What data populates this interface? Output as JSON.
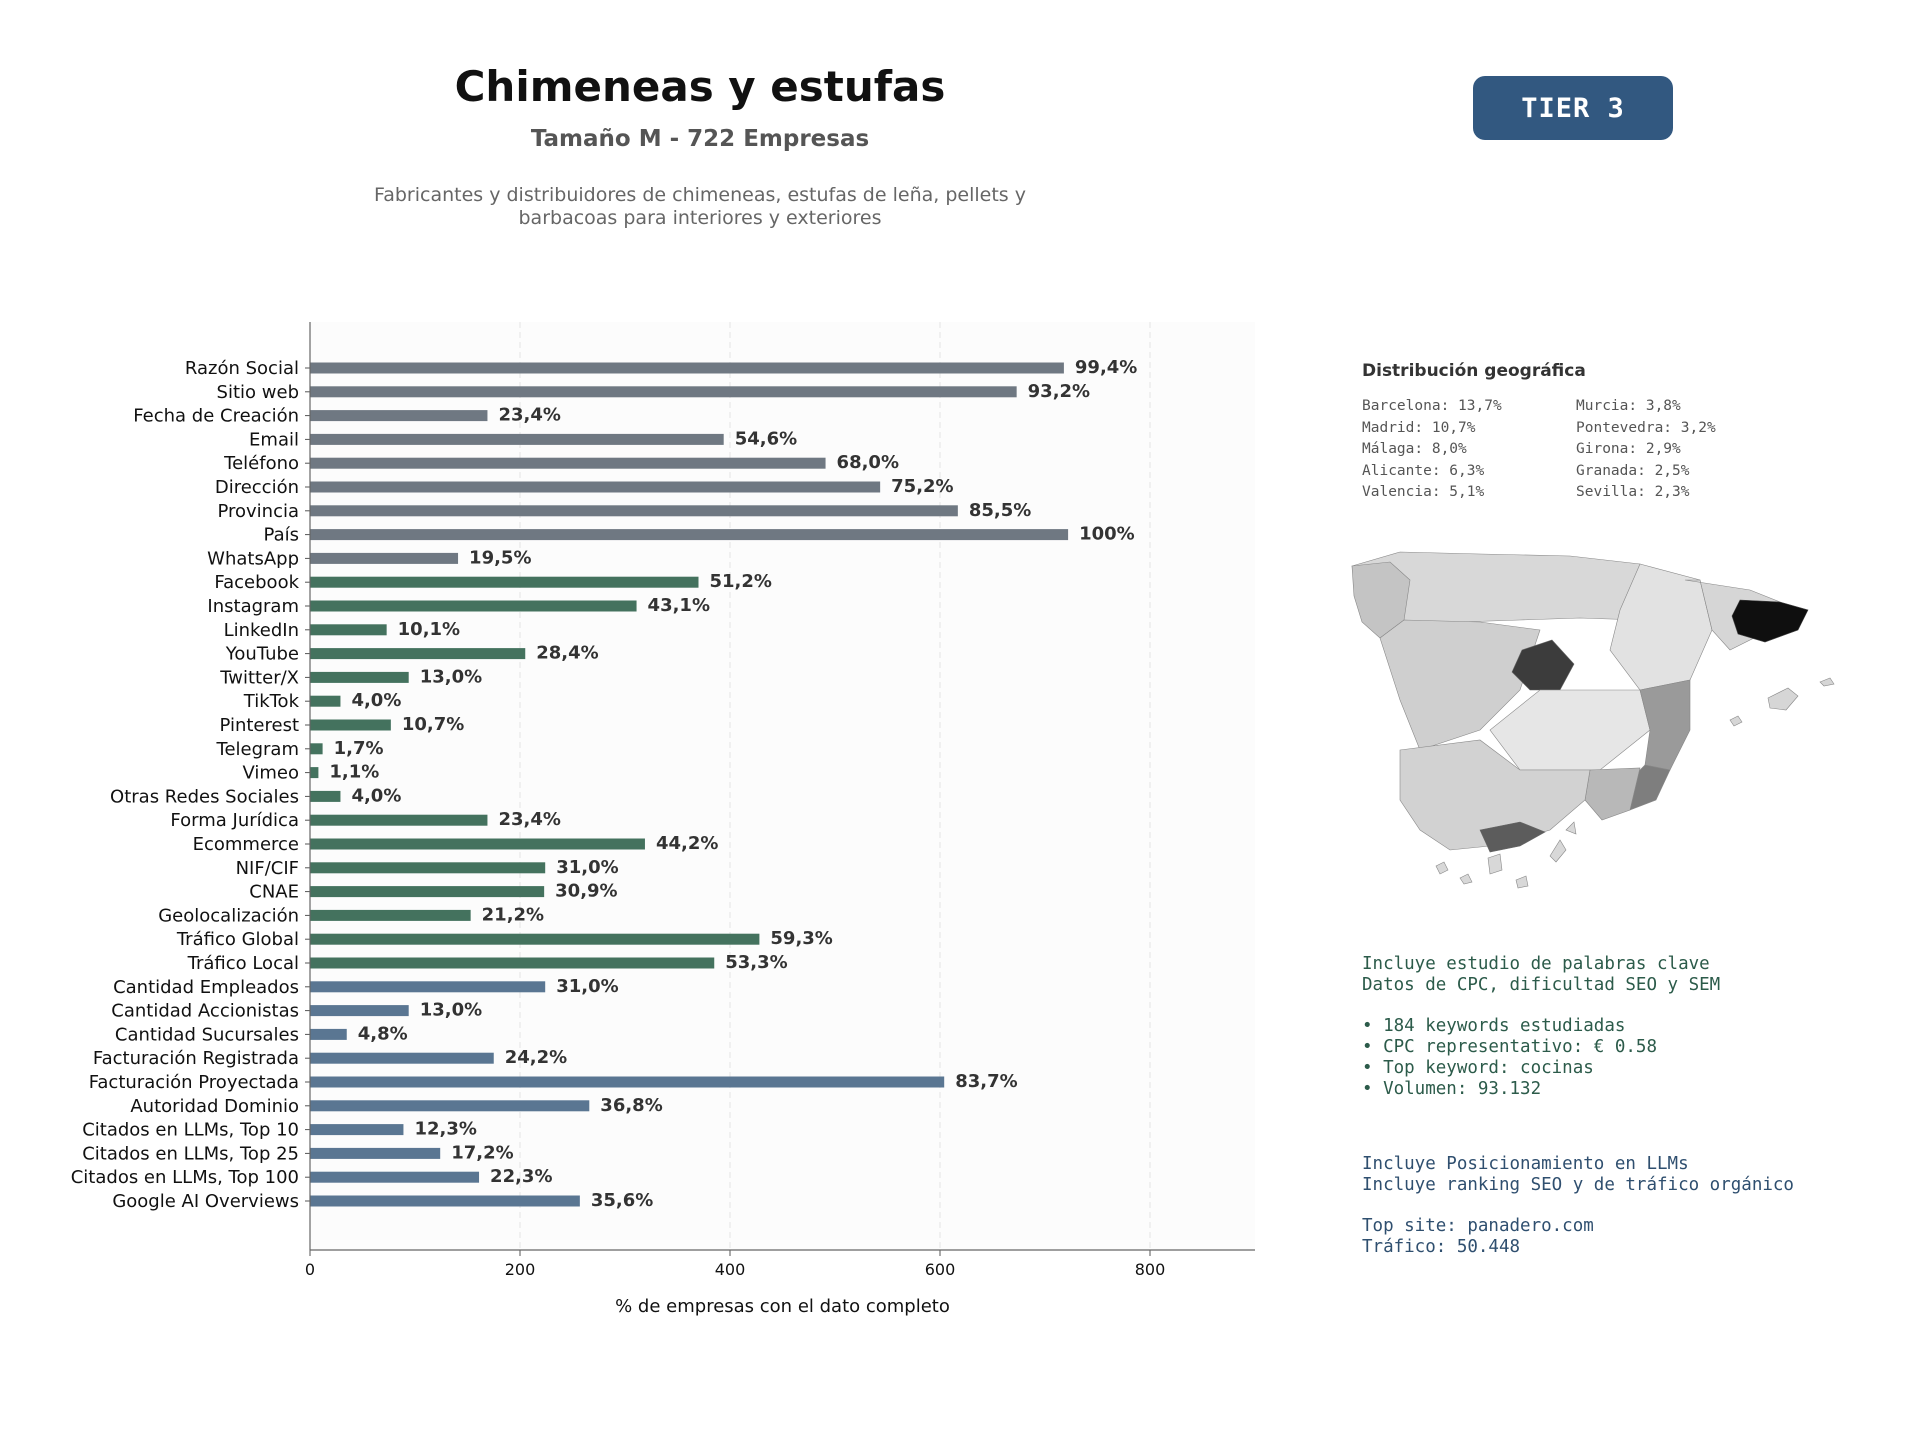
{
  "header": {
    "title": "Chimeneas y estufas",
    "subtitle": "Tamaño M - 722 Empresas",
    "description": "Fabricantes y distribuidores de chimeneas, estufas de leña, pellets y barbacoas para interiores y exteriores",
    "tier": "TIER 3"
  },
  "colors": {
    "gray": "#6f7882",
    "green": "#44725e",
    "blue": "#5a7692",
    "tier_bg": "#325880"
  },
  "chart_data": {
    "type": "bar",
    "orientation": "horizontal",
    "xlabel": "% de empresas con el dato completo",
    "xlim": [
      0,
      900
    ],
    "xticks": [
      0,
      200,
      400,
      600,
      800
    ],
    "grid": true,
    "categories": [
      "Razón Social",
      "Sitio web",
      "Fecha de Creación",
      "Email",
      "Teléfono",
      "Dirección",
      "Provincia",
      "País",
      "WhatsApp",
      "Facebook",
      "Instagram",
      "LinkedIn",
      "YouTube",
      "Twitter/X",
      "TikTok",
      "Pinterest",
      "Telegram",
      "Vimeo",
      "Otras Redes Sociales",
      "Forma Jurídica",
      "Ecommerce",
      "NIF/CIF",
      "CNAE",
      "Geolocalización",
      "Tráfico Global",
      "Tráfico Local",
      "Cantidad Empleados",
      "Cantidad Accionistas",
      "Cantidad Sucursales",
      "Facturación Registrada",
      "Facturación Proyectada",
      "Autoridad Dominio",
      "Citados en LLMs, Top 10",
      "Citados en LLMs, Top 25",
      "Citados en LLMs, Top 100",
      "Google AI Overviews"
    ],
    "values": [
      718,
      673,
      169,
      394,
      491,
      543,
      617,
      722,
      141,
      370,
      311,
      73,
      205,
      94,
      29,
      77,
      12,
      8,
      29,
      169,
      319,
      224,
      223,
      153,
      428,
      385,
      224,
      94,
      35,
      175,
      604,
      266,
      89,
      124,
      161,
      257
    ],
    "labels": [
      "99,4%",
      "93,2%",
      "23,4%",
      "54,6%",
      "68,0%",
      "75,2%",
      "85,5%",
      "100%",
      "19,5%",
      "51,2%",
      "43,1%",
      "10,1%",
      "28,4%",
      "13,0%",
      "4,0%",
      "10,7%",
      "1,7%",
      "1,1%",
      "4,0%",
      "23,4%",
      "44,2%",
      "31,0%",
      "30,9%",
      "21,2%",
      "59,3%",
      "53,3%",
      "31,0%",
      "13,0%",
      "4,8%",
      "24,2%",
      "83,7%",
      "36,8%",
      "12,3%",
      "17,2%",
      "22,3%",
      "35,6%"
    ],
    "groups": [
      "gray",
      "gray",
      "gray",
      "gray",
      "gray",
      "gray",
      "gray",
      "gray",
      "gray",
      "green",
      "green",
      "green",
      "green",
      "green",
      "green",
      "green",
      "green",
      "green",
      "green",
      "green",
      "green",
      "green",
      "green",
      "green",
      "green",
      "green",
      "blue",
      "blue",
      "blue",
      "blue",
      "blue",
      "blue",
      "blue",
      "blue",
      "blue",
      "blue"
    ]
  },
  "geo": {
    "title": "Distribución geográfica",
    "items": [
      "Barcelona: 13,7%",
      "Murcia: 3,8%",
      "Madrid: 10,7%",
      "Pontevedra: 3,2%",
      "Málaga: 8,0%",
      "Girona: 2,9%",
      "Alicante: 6,3%",
      "Granada: 2,5%",
      "Valencia: 5,1%",
      "Sevilla: 2,3%"
    ]
  },
  "keywords": {
    "line1": "Incluye estudio de palabras clave",
    "line2": "Datos de CPC, dificultad SEO y SEM",
    "bullets": [
      "• 184 keywords estudiadas",
      "• CPC representativo: € 0.58",
      "• Top keyword: cocinas",
      "• Volumen: 93.132"
    ]
  },
  "llm": {
    "line1": "Incluye Posicionamiento en LLMs",
    "line2": "Incluye ranking SEO y de tráfico orgánico",
    "top_site": "Top site: panadero.com",
    "traffic": "Tráfico: 50.448"
  }
}
